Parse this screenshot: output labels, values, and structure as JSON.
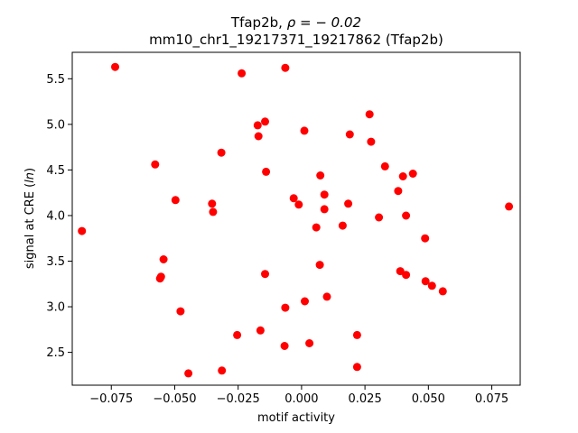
{
  "chart_data": {
    "type": "scatter",
    "title_line1_prefix": "Tfap2b, ",
    "title_line1_rho": "ρ = − 0.02",
    "title_line2": "mm10_chr1_19217371_19217862 (Tfap2b)",
    "xlabel": "motif activity",
    "ylabel_prefix": "signal at CRE (",
    "ylabel_italic": "ln",
    "ylabel_suffix": ")",
    "xlim": [
      -0.0904,
      0.0862
    ],
    "ylim": [
      2.14,
      5.79
    ],
    "xticks": [
      -0.075,
      -0.05,
      -0.025,
      0.0,
      0.025,
      0.05,
      0.075
    ],
    "xtick_labels": [
      "−0.075",
      "−0.050",
      "−0.025",
      "0.000",
      "0.025",
      "0.050",
      "0.075"
    ],
    "yticks": [
      2.5,
      3.0,
      3.5,
      4.0,
      4.5,
      5.0,
      5.5
    ],
    "ytick_labels": [
      "2.5",
      "3.0",
      "3.5",
      "4.0",
      "4.5",
      "5.0",
      "5.5"
    ],
    "marker_color": "#ff0000",
    "grid": false,
    "points": [
      {
        "x": -0.0866,
        "y": 3.83
      },
      {
        "x": -0.0735,
        "y": 5.63
      },
      {
        "x": -0.0577,
        "y": 4.56
      },
      {
        "x": -0.0558,
        "y": 3.31
      },
      {
        "x": -0.0554,
        "y": 3.33
      },
      {
        "x": -0.0544,
        "y": 3.52
      },
      {
        "x": -0.0497,
        "y": 4.17
      },
      {
        "x": -0.0477,
        "y": 2.95
      },
      {
        "x": -0.0446,
        "y": 2.27
      },
      {
        "x": -0.0353,
        "y": 4.13
      },
      {
        "x": -0.0349,
        "y": 4.04
      },
      {
        "x": -0.0316,
        "y": 4.69
      },
      {
        "x": -0.0314,
        "y": 2.3
      },
      {
        "x": -0.0254,
        "y": 2.69
      },
      {
        "x": -0.0236,
        "y": 5.56
      },
      {
        "x": -0.0173,
        "y": 4.99
      },
      {
        "x": -0.017,
        "y": 4.87
      },
      {
        "x": -0.0162,
        "y": 2.74
      },
      {
        "x": -0.0144,
        "y": 5.03
      },
      {
        "x": -0.0144,
        "y": 3.36
      },
      {
        "x": -0.014,
        "y": 4.48
      },
      {
        "x": -0.0067,
        "y": 2.57
      },
      {
        "x": -0.0064,
        "y": 5.62
      },
      {
        "x": -0.0064,
        "y": 2.99
      },
      {
        "x": -0.0031,
        "y": 4.19
      },
      {
        "x": -0.0011,
        "y": 4.12
      },
      {
        "x": 0.0011,
        "y": 4.93
      },
      {
        "x": 0.0013,
        "y": 3.06
      },
      {
        "x": 0.0031,
        "y": 2.6
      },
      {
        "x": 0.0058,
        "y": 3.87
      },
      {
        "x": 0.0072,
        "y": 3.46
      },
      {
        "x": 0.0074,
        "y": 4.44
      },
      {
        "x": 0.009,
        "y": 4.23
      },
      {
        "x": 0.009,
        "y": 4.07
      },
      {
        "x": 0.01,
        "y": 3.11
      },
      {
        "x": 0.0162,
        "y": 3.89
      },
      {
        "x": 0.0184,
        "y": 4.13
      },
      {
        "x": 0.019,
        "y": 4.89
      },
      {
        "x": 0.0219,
        "y": 2.69
      },
      {
        "x": 0.0219,
        "y": 2.34
      },
      {
        "x": 0.0268,
        "y": 5.11
      },
      {
        "x": 0.0274,
        "y": 4.81
      },
      {
        "x": 0.0305,
        "y": 3.98
      },
      {
        "x": 0.0329,
        "y": 4.54
      },
      {
        "x": 0.0381,
        "y": 4.27
      },
      {
        "x": 0.0389,
        "y": 3.39
      },
      {
        "x": 0.04,
        "y": 4.43
      },
      {
        "x": 0.0412,
        "y": 4.0
      },
      {
        "x": 0.0412,
        "y": 3.35
      },
      {
        "x": 0.0439,
        "y": 4.46
      },
      {
        "x": 0.0487,
        "y": 3.75
      },
      {
        "x": 0.0489,
        "y": 3.28
      },
      {
        "x": 0.0514,
        "y": 3.23
      },
      {
        "x": 0.0557,
        "y": 3.17
      },
      {
        "x": 0.0818,
        "y": 4.1
      }
    ]
  }
}
